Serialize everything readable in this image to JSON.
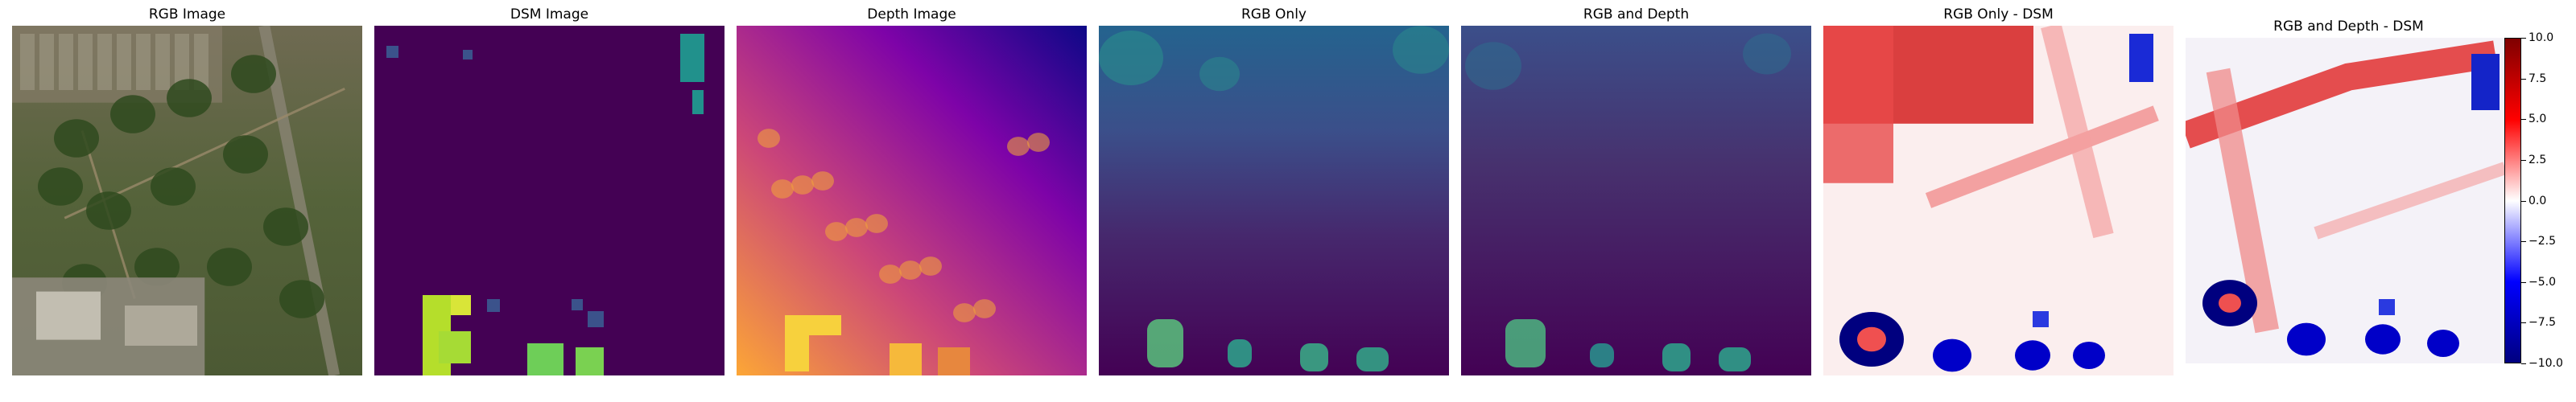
{
  "figure": {
    "panels": [
      {
        "title": "RGB Image",
        "kind": "rgb"
      },
      {
        "title": "DSM Image",
        "kind": "dsm"
      },
      {
        "title": "Depth Image",
        "kind": "depth"
      },
      {
        "title": "RGB Only",
        "kind": "pred1"
      },
      {
        "title": "RGB and Depth",
        "kind": "pred2"
      },
      {
        "title": "RGB Only - DSM",
        "kind": "diff1"
      },
      {
        "title": "RGB and Depth - DSM",
        "kind": "diff2"
      }
    ],
    "colorbar": {
      "ticks": [
        "10.0",
        "7.5",
        "5.0",
        "2.5",
        "0.0",
        "−2.5",
        "−5.0",
        "−7.5",
        "−10.0"
      ],
      "range": [
        -10,
        10
      ],
      "colormap": "seismic",
      "colors": [
        "#7f0000",
        "#ff0000",
        "#ffffff",
        "#0000ff",
        "#00007f"
      ]
    }
  },
  "chart_data": [
    {
      "type": "heatmap",
      "title": "RGB Image"
    },
    {
      "type": "heatmap",
      "title": "DSM Image",
      "colormap": "viridis"
    },
    {
      "type": "heatmap",
      "title": "Depth Image",
      "colormap": "plasma"
    },
    {
      "type": "heatmap",
      "title": "RGB Only",
      "colormap": "viridis"
    },
    {
      "type": "heatmap",
      "title": "RGB and Depth",
      "colormap": "viridis"
    },
    {
      "type": "heatmap",
      "title": "RGB Only - DSM",
      "colormap": "seismic",
      "range": [
        -10,
        10
      ]
    },
    {
      "type": "heatmap",
      "title": "RGB and Depth - DSM",
      "colormap": "seismic",
      "range": [
        -10,
        10
      ],
      "colorbar_ticks": [
        10.0,
        7.5,
        5.0,
        2.5,
        0.0,
        -2.5,
        -5.0,
        -7.5,
        -10.0
      ]
    }
  ]
}
